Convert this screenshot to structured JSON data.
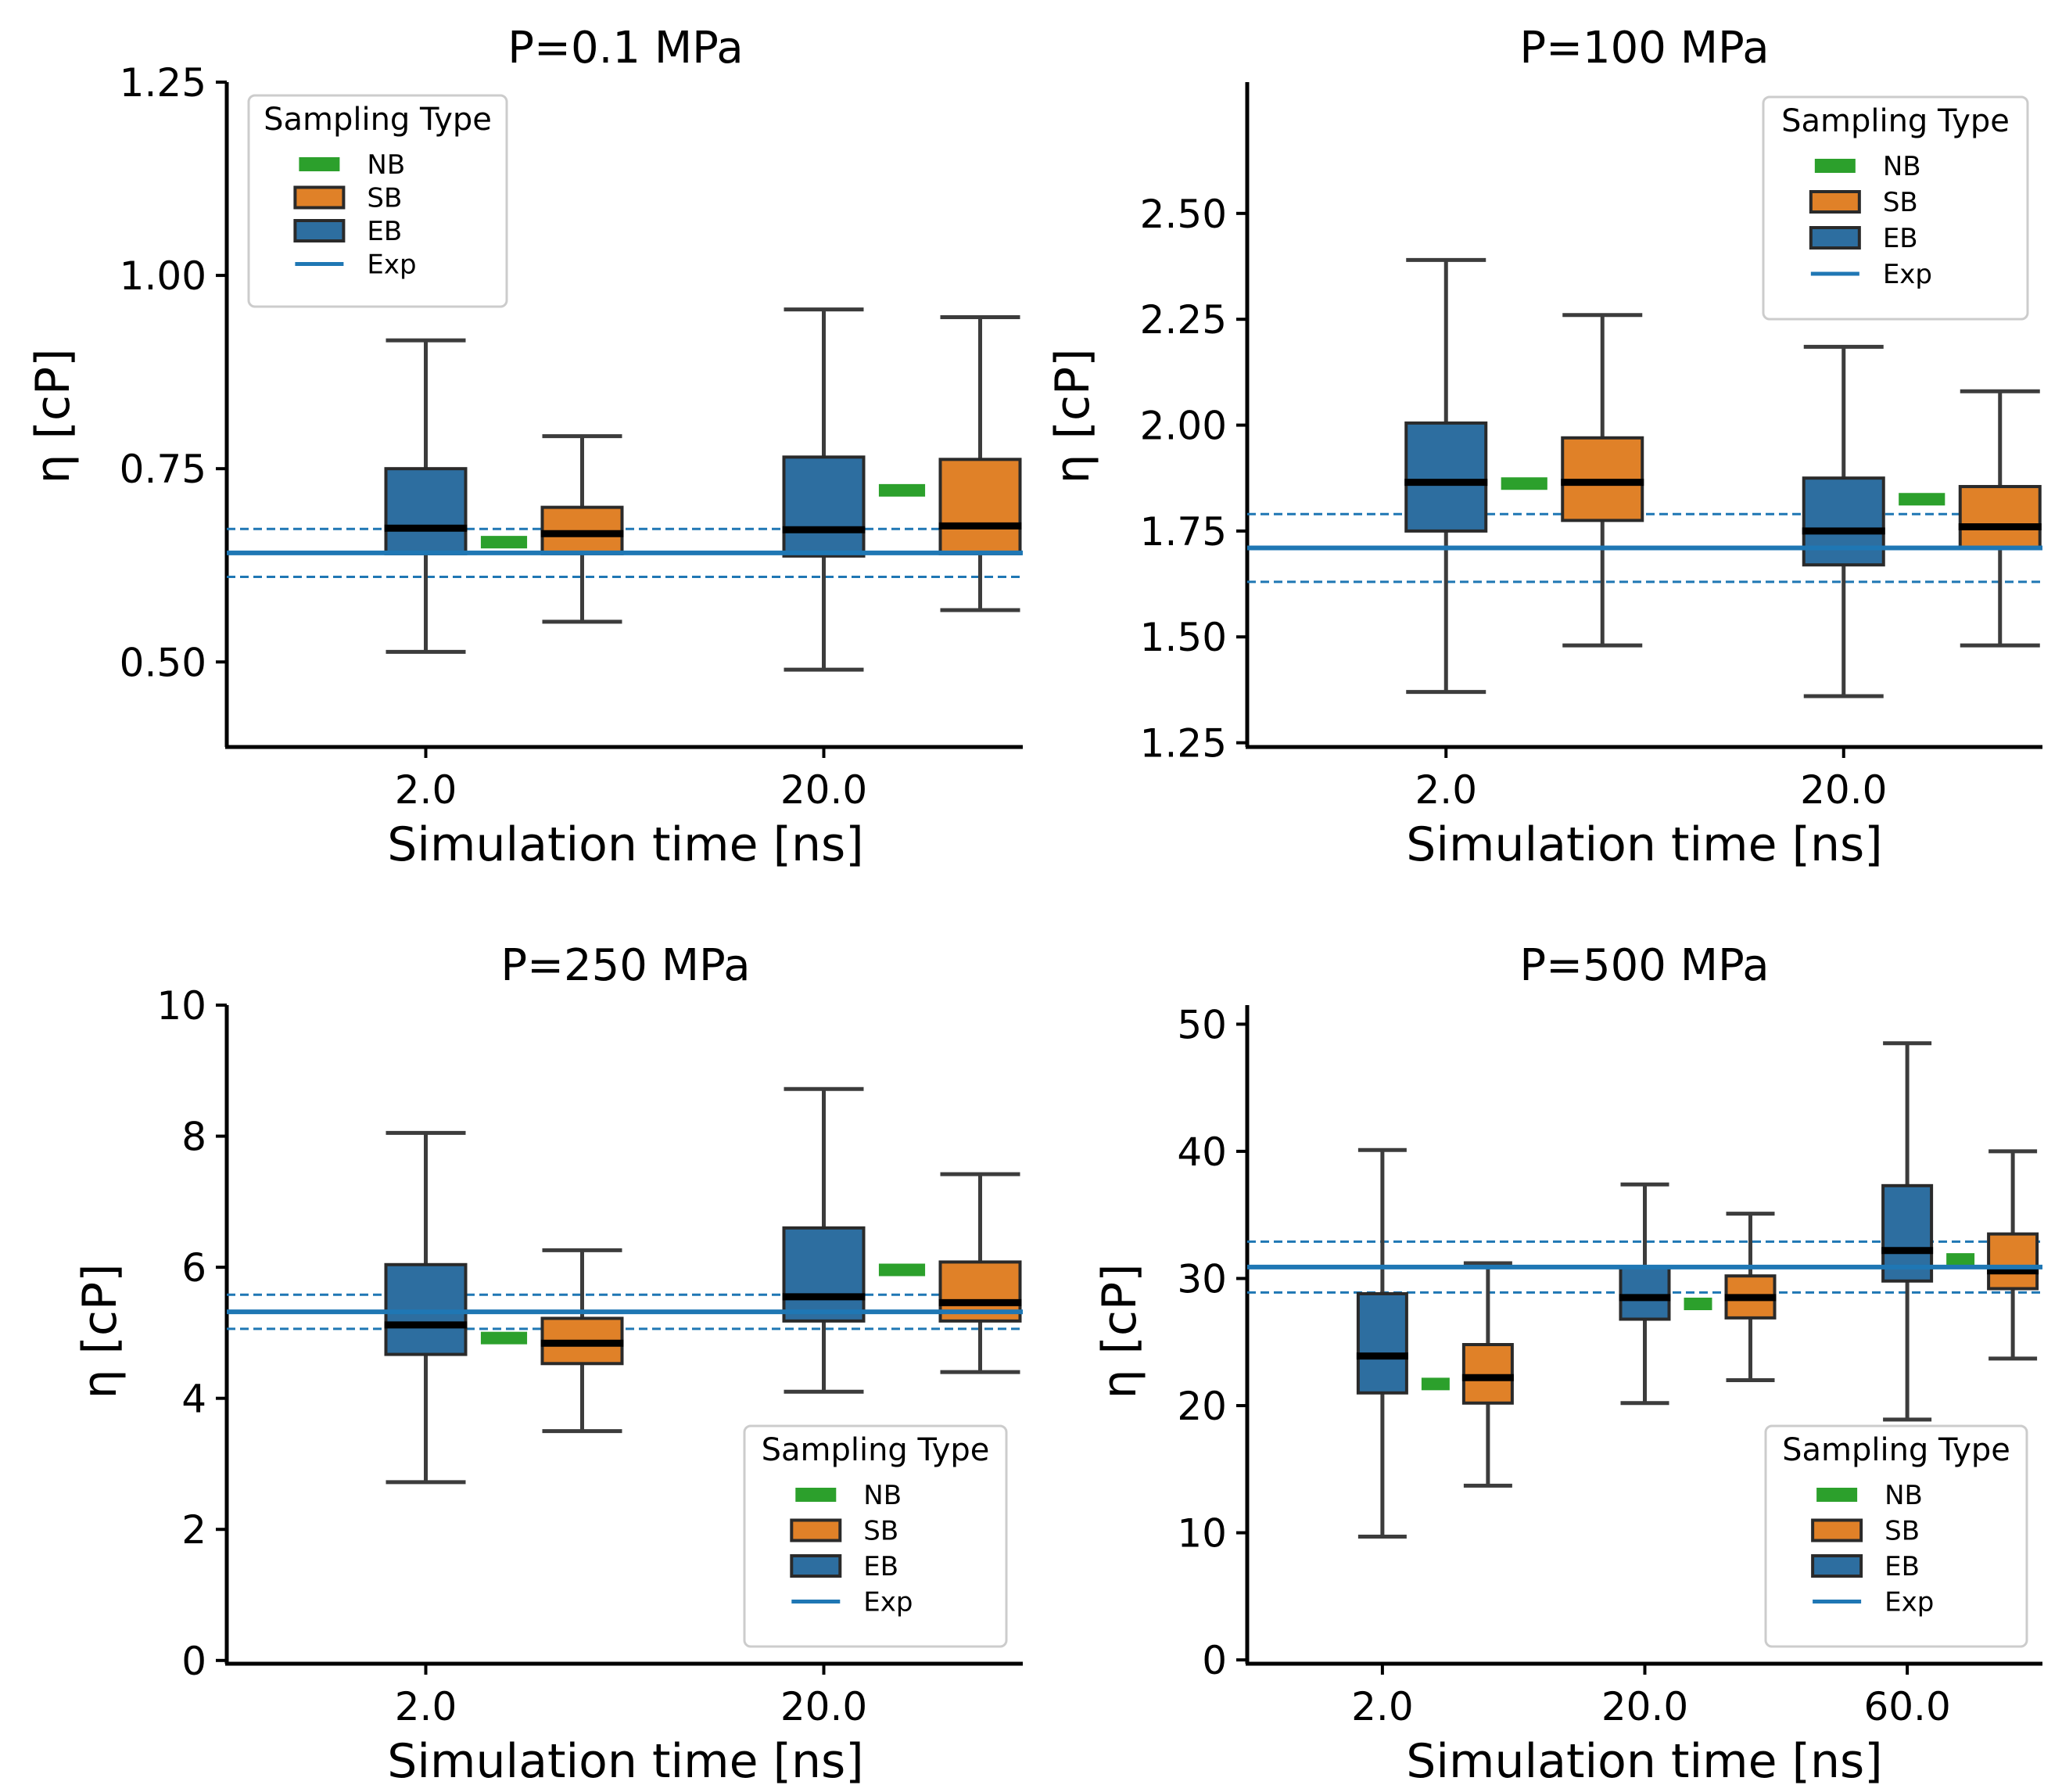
{
  "chart_data": [
    {
      "type": "box",
      "title": "P=0.1 MPa",
      "xlabel": "Simulation time [ns]",
      "ylabel": "η [cP]",
      "categories": [
        "2.0",
        "20.0"
      ],
      "ylim": [
        0.39,
        1.25
      ],
      "yticks": [
        "0.50",
        "0.75",
        "1.00",
        "1.25"
      ],
      "exp": {
        "mean": 0.641,
        "lower": 0.61,
        "upper": 0.672
      },
      "legend": {
        "title": "Sampling Type",
        "position": "upper-left",
        "entries": [
          "NB",
          "SB",
          "EB",
          "Exp"
        ]
      },
      "series": [
        {
          "name": "EB",
          "boxes": [
            {
              "min": 0.513,
              "q1": 0.64,
              "median": 0.673,
              "q3": 0.75,
              "max": 0.916
            },
            {
              "min": 0.49,
              "q1": 0.637,
              "median": 0.671,
              "q3": 0.765,
              "max": 0.956
            }
          ]
        },
        {
          "name": "NB",
          "values": [
            0.655,
            0.722
          ]
        },
        {
          "name": "SB",
          "boxes": [
            {
              "min": 0.552,
              "q1": 0.64,
              "median": 0.666,
              "q3": 0.7,
              "max": 0.792
            },
            {
              "min": 0.567,
              "q1": 0.64,
              "median": 0.676,
              "q3": 0.762,
              "max": 0.946
            }
          ]
        }
      ]
    },
    {
      "type": "box",
      "title": "P=100 MPa",
      "xlabel": "Simulation time [ns]",
      "ylabel": "η [cP]",
      "categories": [
        "2.0",
        "20.0"
      ],
      "ylim": [
        1.24,
        2.81
      ],
      "yticks": [
        "1.25",
        "1.50",
        "1.75",
        "2.00",
        "2.25",
        "2.50"
      ],
      "exp": {
        "mean": 1.71,
        "lower": 1.63,
        "upper": 1.79
      },
      "legend": {
        "title": "Sampling Type",
        "position": "upper-right",
        "entries": [
          "NB",
          "SB",
          "EB",
          "Exp"
        ]
      },
      "series": [
        {
          "name": "EB",
          "boxes": [
            {
              "min": 1.37,
              "q1": 1.75,
              "median": 1.865,
              "q3": 2.005,
              "max": 2.39
            },
            {
              "min": 1.36,
              "q1": 1.67,
              "median": 1.75,
              "q3": 1.875,
              "max": 2.185
            }
          ]
        },
        {
          "name": "NB",
          "values": [
            1.862,
            1.825
          ]
        },
        {
          "name": "SB",
          "boxes": [
            {
              "min": 1.48,
              "q1": 1.775,
              "median": 1.865,
              "q3": 1.97,
              "max": 2.26
            },
            {
              "min": 1.48,
              "q1": 1.71,
              "median": 1.76,
              "q3": 1.855,
              "max": 2.08
            }
          ]
        }
      ]
    },
    {
      "type": "box",
      "title": "P=250 MPa",
      "xlabel": "Simulation time [ns]",
      "ylabel": "η [cP]",
      "categories": [
        "2.0",
        "20.0"
      ],
      "ylim": [
        -0.05,
        10
      ],
      "yticks": [
        "0",
        "2",
        "4",
        "6",
        "8",
        "10"
      ],
      "exp": {
        "mean": 5.32,
        "lower": 5.06,
        "upper": 5.58
      },
      "legend": {
        "title": "Sampling Type",
        "position": "lower-right",
        "entries": [
          "NB",
          "SB",
          "EB",
          "Exp"
        ]
      },
      "series": [
        {
          "name": "EB",
          "boxes": [
            {
              "min": 2.72,
              "q1": 4.67,
              "median": 5.12,
              "q3": 6.04,
              "max": 8.05
            },
            {
              "min": 4.1,
              "q1": 5.18,
              "median": 5.55,
              "q3": 6.6,
              "max": 8.72
            }
          ]
        },
        {
          "name": "NB",
          "values": [
            4.92,
            5.96
          ]
        },
        {
          "name": "SB",
          "boxes": [
            {
              "min": 3.5,
              "q1": 4.53,
              "median": 4.84,
              "q3": 5.22,
              "max": 6.26
            },
            {
              "min": 4.4,
              "q1": 5.18,
              "median": 5.46,
              "q3": 6.08,
              "max": 7.42
            }
          ]
        }
      ]
    },
    {
      "type": "box",
      "title": "P=500 MPa",
      "xlabel": "Simulation time [ns]",
      "ylabel": "η [cP]",
      "categories": [
        "2.0",
        "20.0",
        "60.0"
      ],
      "ylim": [
        -0.3,
        51.5
      ],
      "yticks": [
        "0",
        "10",
        "20",
        "30",
        "40",
        "50"
      ],
      "exp": {
        "mean": 30.9,
        "lower": 28.9,
        "upper": 32.9
      },
      "legend": {
        "title": "Sampling Type",
        "position": "lower-right",
        "entries": [
          "NB",
          "SB",
          "EB",
          "Exp"
        ]
      },
      "series": [
        {
          "name": "EB",
          "boxes": [
            {
              "min": 9.7,
              "q1": 21.0,
              "median": 23.9,
              "q3": 28.8,
              "max": 40.1
            },
            {
              "min": 20.2,
              "q1": 26.8,
              "median": 28.5,
              "q3": 30.9,
              "max": 37.4
            },
            {
              "min": 18.9,
              "q1": 29.8,
              "median": 32.2,
              "q3": 37.3,
              "max": 48.5
            }
          ]
        },
        {
          "name": "NB",
          "values": [
            21.7,
            28.0,
            31.5
          ]
        },
        {
          "name": "SB",
          "boxes": [
            {
              "min": 13.7,
              "q1": 20.2,
              "median": 22.2,
              "q3": 24.8,
              "max": 31.2
            },
            {
              "min": 22.0,
              "q1": 26.9,
              "median": 28.5,
              "q3": 30.2,
              "max": 35.1
            },
            {
              "min": 23.7,
              "q1": 29.2,
              "median": 30.6,
              "q3": 33.5,
              "max": 40.0
            }
          ]
        }
      ]
    }
  ],
  "colors": {
    "NB": "#2ca02c",
    "SB": "#e08128",
    "EB": "#2d6ea0",
    "Exp": "#1f77b4",
    "whisker": "#3c3c3c",
    "median": "#000000"
  },
  "icons": {
    "legend_bar": "legend-patch-icon",
    "legend_line": "legend-line-icon"
  }
}
